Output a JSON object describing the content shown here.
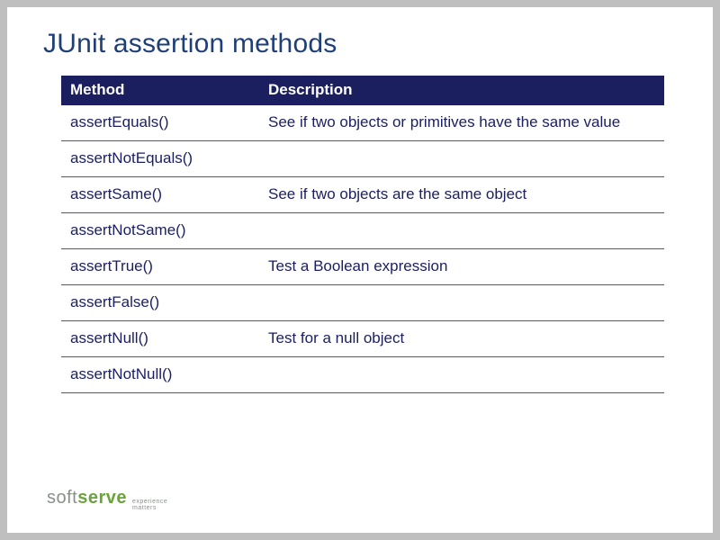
{
  "colors": {
    "title": "#1f3f77",
    "header_bg": "#1b1f60",
    "header_text": "#ffffff",
    "cell_text": "#1b1f60",
    "row_border": "#5a5a5a",
    "page_bg": "#bfbfbf",
    "logo_soft": "#8a8f8a",
    "logo_serve": "#6aa33a",
    "logo_tag": "#8a8f8a"
  },
  "title": "JUnit assertion methods",
  "table": {
    "columns": [
      "Method",
      "Description"
    ],
    "rows": [
      [
        "assertEquals()",
        "See if two objects or primitives have the same value"
      ],
      [
        "assertNotEquals()",
        ""
      ],
      [
        "assertSame()",
        "See if two objects are the same object"
      ],
      [
        "assertNotSame()",
        ""
      ],
      [
        "assertTrue()",
        "Test a Boolean expression"
      ],
      [
        "assertFalse()",
        ""
      ],
      [
        "assertNull()",
        "Test for a null object"
      ],
      [
        "assertNotNull()",
        ""
      ]
    ]
  },
  "logo": {
    "soft": "soft",
    "serve": "serve",
    "tag_line1": "experience",
    "tag_line2": "matters"
  }
}
